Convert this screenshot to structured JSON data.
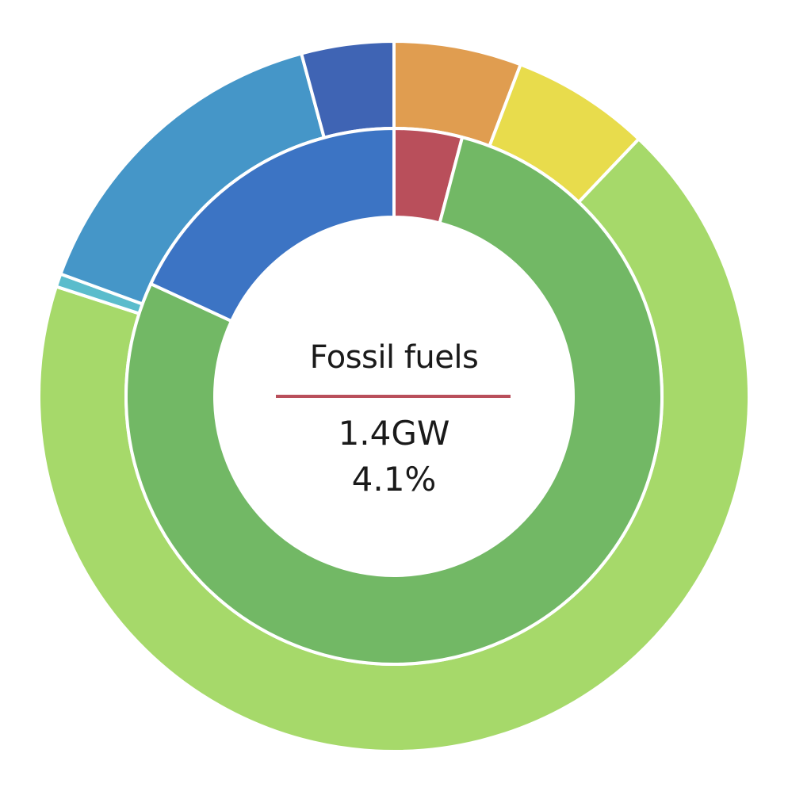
{
  "chart_data": {
    "type": "pie",
    "rings": [
      {
        "ring": "inner",
        "slices": [
          {
            "value": 4.1,
            "color": "#b94f5b"
          },
          {
            "value": 77.8,
            "color": "#72b865"
          },
          {
            "value": 18.1,
            "color": "#3c74c4"
          }
        ]
      },
      {
        "ring": "outer",
        "slices": [
          {
            "value": 5.8,
            "color": "#e09d50"
          },
          {
            "value": 6.3,
            "color": "#e8dc4c"
          },
          {
            "value": 67.9,
            "color": "#a6d96a"
          },
          {
            "value": 0.6,
            "color": "#5bbccc"
          },
          {
            "value": 15.2,
            "color": "#4596c8"
          },
          {
            "value": 4.2,
            "color": "#3f64b4"
          }
        ]
      }
    ],
    "highlight": {
      "label": "Fossil fuels",
      "value": "1.4GW",
      "percent": "4.1%",
      "color": "#b94f5b"
    }
  }
}
